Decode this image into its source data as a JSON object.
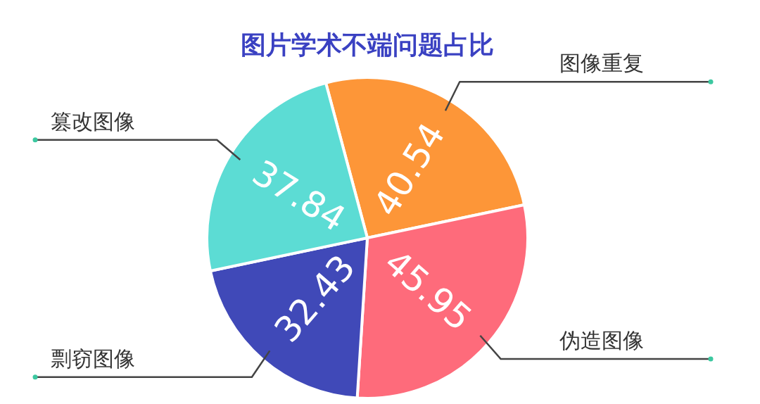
{
  "chart_data": {
    "type": "pie",
    "title": "图片学术不端问题占比",
    "categories": [
      "图像重复",
      "伪造图像",
      "剽窃图像",
      "篡改图像"
    ],
    "values": [
      40.54,
      45.95,
      32.43,
      37.84
    ],
    "colors": [
      "#fd9638",
      "#fe6b7b",
      "#4049b8",
      "#5cdcd4"
    ],
    "data_labels": true
  }
}
